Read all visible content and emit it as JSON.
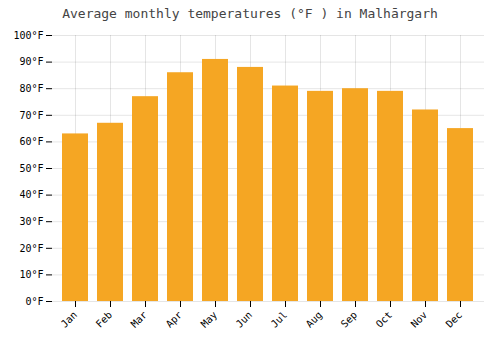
{
  "chart_data": {
    "type": "bar",
    "title": "Average monthly temperatures (°F ) in Malhārgarh",
    "categories": [
      "Jan",
      "Feb",
      "Mar",
      "Apr",
      "May",
      "Jun",
      "Jul",
      "Aug",
      "Sep",
      "Oct",
      "Nov",
      "Dec"
    ],
    "values": [
      63,
      67,
      77,
      86,
      91,
      88,
      81,
      79,
      80,
      79,
      72,
      65
    ],
    "color": "#F5A623",
    "ylim": [
      0,
      100
    ],
    "yticks": [
      {
        "value": 0,
        "label": "0°F"
      },
      {
        "value": 10,
        "label": "10°F"
      },
      {
        "value": 20,
        "label": "20°F"
      },
      {
        "value": 30,
        "label": "30°F"
      },
      {
        "value": 40,
        "label": "40°F"
      },
      {
        "value": 50,
        "label": "50°F"
      },
      {
        "value": 60,
        "label": "60°F"
      },
      {
        "value": 70,
        "label": "70°F"
      },
      {
        "value": 80,
        "label": "80°F"
      },
      {
        "value": 90,
        "label": "90°F"
      },
      {
        "value": 100,
        "label": "100°F"
      }
    ],
    "grid": true
  }
}
